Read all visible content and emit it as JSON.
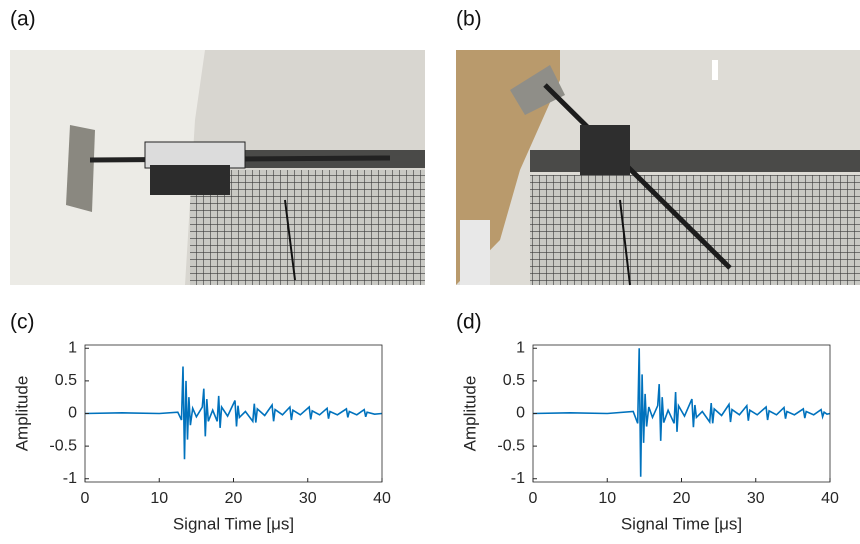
{
  "panels": [
    {
      "label": "(a)"
    },
    {
      "label": "(b)"
    }
  ],
  "chart_data": [
    {
      "type": "line",
      "panel_label": "(c)",
      "xlabel": "Signal Time [μs]",
      "ylabel": "Amplitude",
      "x": [
        0,
        5,
        10,
        12.5,
        13,
        13.2,
        13.4,
        13.6,
        13.8,
        14.0,
        14.2,
        14.5,
        15,
        15.8,
        16.0,
        16.2,
        16.4,
        16.6,
        17.2,
        17.8,
        18.0,
        18.2,
        18.4,
        19.2,
        20.2,
        20.4,
        20.6,
        20.8,
        21.6,
        22.6,
        22.8,
        23.0,
        23.2,
        24.2,
        25.2,
        25.4,
        25.6,
        26.6,
        27.6,
        27.8,
        28.0,
        29.0,
        30.2,
        30.4,
        30.6,
        31.6,
        32.6,
        32.8,
        33.0,
        34.0,
        35.2,
        35.4,
        35.6,
        36.6,
        37.6,
        37.8,
        38.0,
        39.0,
        40
      ],
      "series": [
        {
          "color": "#0072bd",
          "values": [
            0,
            0.01,
            0,
            0.02,
            -0.1,
            0.72,
            -0.7,
            0.5,
            -0.4,
            0.25,
            -0.18,
            0.08,
            -0.05,
            0.1,
            0.38,
            -0.35,
            0.22,
            -0.12,
            0.05,
            -0.12,
            0.27,
            -0.22,
            0.1,
            -0.04,
            0.2,
            -0.2,
            0.12,
            -0.06,
            0.03,
            -0.12,
            0.15,
            -0.14,
            0.07,
            -0.03,
            0.13,
            -0.12,
            0.06,
            -0.02,
            0.1,
            -0.1,
            0.05,
            -0.02,
            0.1,
            -0.09,
            0.04,
            -0.02,
            0.08,
            -0.08,
            0.03,
            -0.02,
            0.07,
            -0.06,
            0.03,
            -0.02,
            0.06,
            -0.05,
            0.02,
            -0.01,
            0
          ]
        }
      ],
      "xlim": [
        0,
        40
      ],
      "ylim": [
        -1.05,
        1.05
      ],
      "xticks": [
        0,
        10,
        20,
        30,
        40
      ],
      "yticks": [
        -1,
        -0.5,
        0,
        0.5,
        1
      ]
    },
    {
      "type": "line",
      "panel_label": "(d)",
      "xlabel": "Signal Time [μs]",
      "ylabel": "Amplitude",
      "x": [
        0,
        5,
        10,
        13.5,
        14.1,
        14.3,
        14.5,
        14.7,
        14.9,
        15.1,
        15.3,
        15.6,
        16.1,
        16.8,
        17.0,
        17.2,
        17.4,
        17.6,
        18.2,
        19.0,
        19.2,
        19.4,
        19.6,
        20.4,
        21.4,
        21.6,
        21.8,
        22.0,
        22.8,
        23.8,
        24.0,
        24.2,
        24.4,
        25.4,
        26.4,
        26.6,
        26.8,
        27.8,
        28.8,
        29.0,
        29.2,
        30.2,
        31.4,
        31.6,
        31.8,
        32.8,
        33.8,
        34.0,
        34.2,
        35.2,
        36.4,
        36.6,
        36.8,
        37.8,
        38.8,
        39.0,
        39.2,
        39.6,
        40
      ],
      "series": [
        {
          "color": "#0072bd",
          "values": [
            0,
            0.01,
            0,
            0.03,
            -0.15,
            1.0,
            -0.97,
            0.6,
            -0.45,
            0.3,
            -0.2,
            0.1,
            -0.06,
            0.12,
            0.45,
            -0.42,
            0.25,
            -0.14,
            0.05,
            -0.15,
            0.33,
            -0.28,
            0.12,
            -0.04,
            0.22,
            -0.21,
            0.13,
            -0.06,
            0.03,
            -0.13,
            0.16,
            -0.15,
            0.07,
            -0.03,
            0.14,
            -0.13,
            0.06,
            -0.02,
            0.12,
            -0.11,
            0.05,
            -0.02,
            0.1,
            -0.1,
            0.04,
            -0.02,
            0.09,
            -0.08,
            0.03,
            -0.02,
            0.07,
            -0.07,
            0.03,
            -0.02,
            0.06,
            -0.05,
            0.02,
            -0.01,
            0
          ]
        }
      ],
      "xlim": [
        0,
        40
      ],
      "ylim": [
        -1.05,
        1.05
      ],
      "xticks": [
        0,
        10,
        20,
        30,
        40
      ],
      "yticks": [
        -1,
        -0.5,
        0,
        0.5,
        1
      ]
    }
  ]
}
